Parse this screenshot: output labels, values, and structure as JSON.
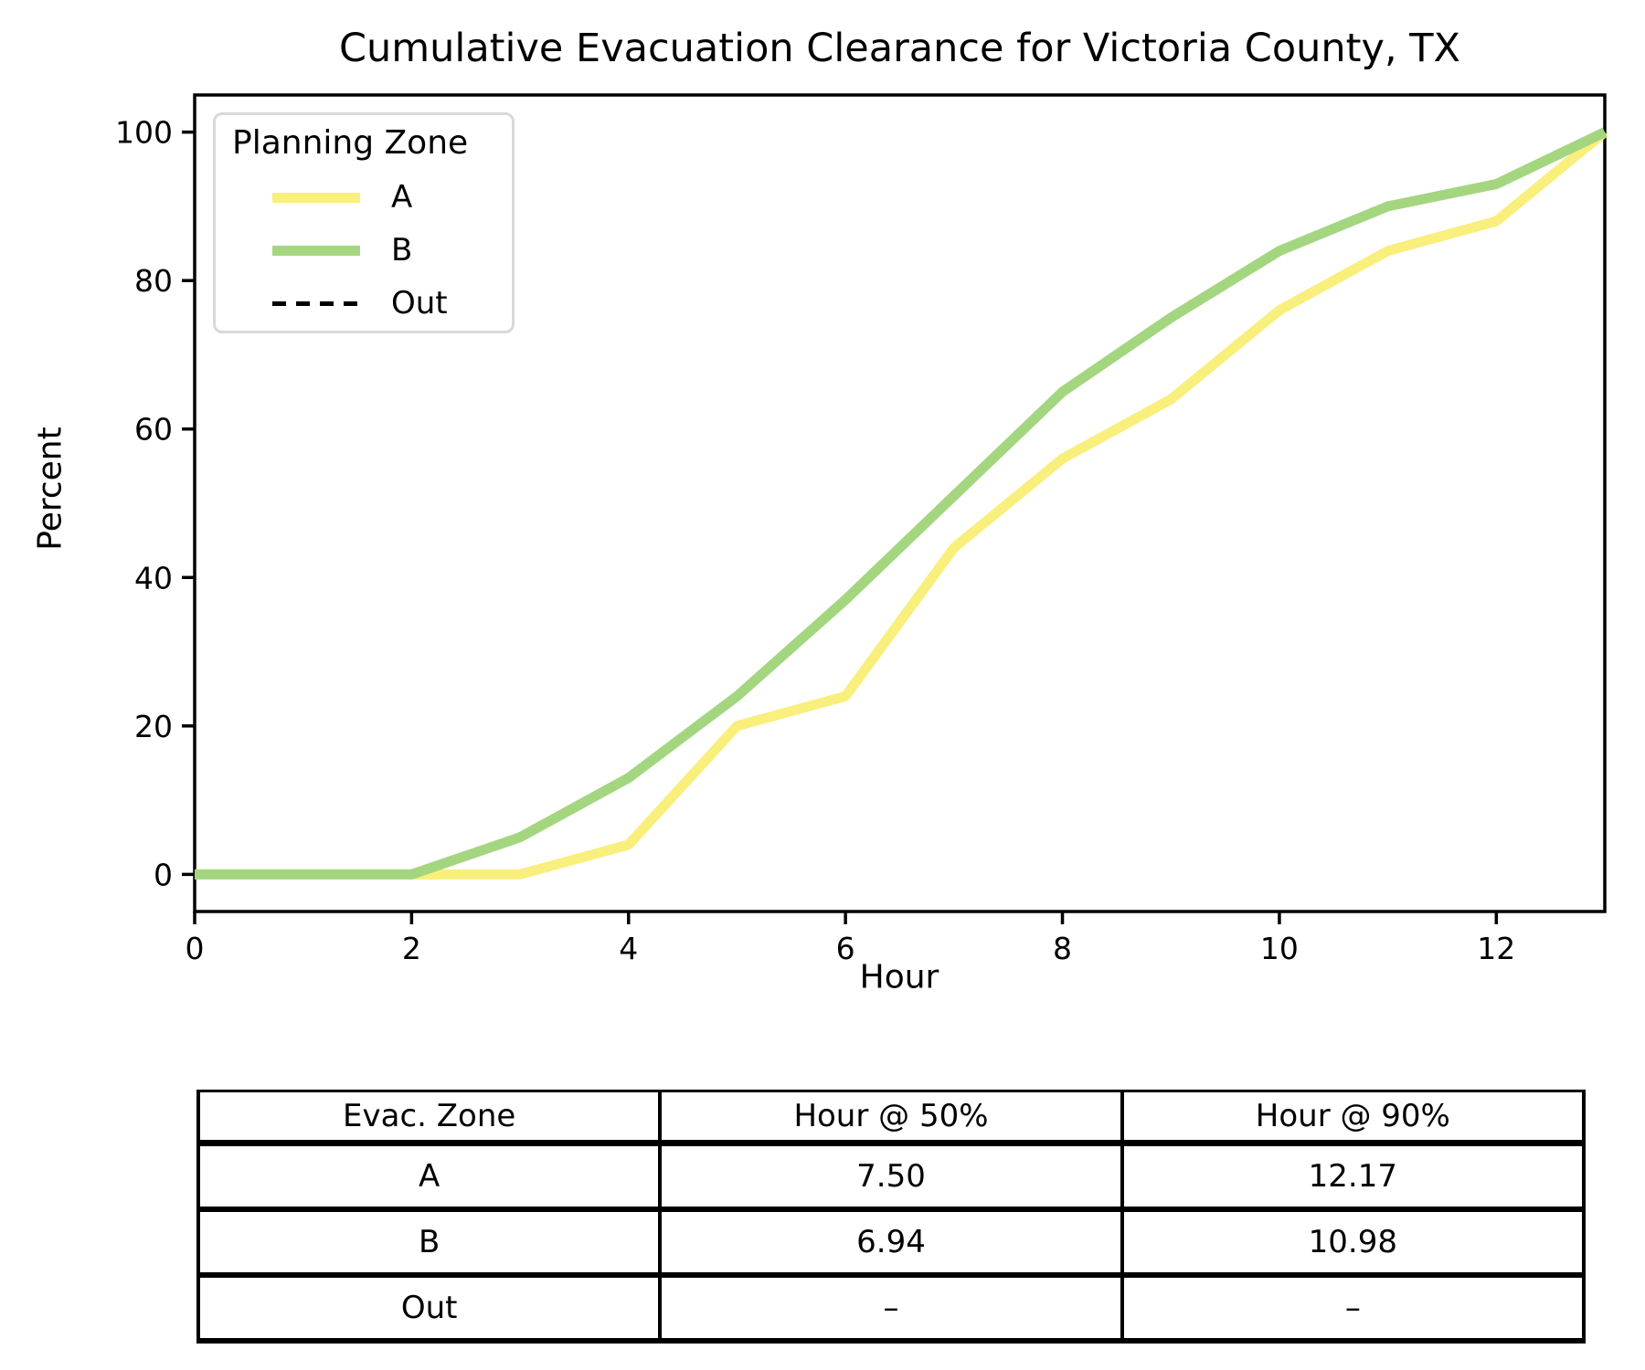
{
  "title": "Cumulative Evacuation Clearance for Victoria County, TX",
  "axes": {
    "xlabel": "Hour",
    "ylabel": "Percent",
    "xticks": [
      0,
      2,
      4,
      6,
      8,
      10,
      12
    ],
    "yticks": [
      0,
      20,
      40,
      60,
      80,
      100
    ]
  },
  "legend": {
    "title": "Planning Zone",
    "items": [
      {
        "label": "A",
        "swatch": "solid",
        "color": "#f9ef7c"
      },
      {
        "label": "B",
        "swatch": "solid",
        "color": "#a4d680"
      },
      {
        "label": "Out",
        "swatch": "dashed",
        "color": "#000000"
      }
    ]
  },
  "chart_data": {
    "type": "line",
    "title": "Cumulative Evacuation Clearance for Victoria County, TX",
    "xlabel": "Hour",
    "ylabel": "Percent",
    "xlim": [
      0,
      13
    ],
    "ylim": [
      -5,
      105
    ],
    "grid": false,
    "legend_position": "upper left",
    "x": [
      0,
      1,
      2,
      3,
      4,
      5,
      6,
      7,
      8,
      9,
      10,
      11,
      12,
      13
    ],
    "series": [
      {
        "name": "A",
        "color": "#f9ef7c",
        "values": [
          0,
          0,
          0,
          0,
          4,
          20,
          24,
          44,
          56,
          64,
          76,
          84,
          88,
          100
        ]
      },
      {
        "name": "B",
        "color": "#a4d680",
        "values": [
          0,
          0,
          0,
          5,
          13,
          24,
          37,
          51,
          65,
          75,
          84,
          90,
          93,
          100
        ]
      }
    ]
  },
  "table": {
    "headers": [
      "Evac. Zone",
      "Hour @ 50%",
      "Hour @ 90%"
    ],
    "rows": [
      [
        "A",
        "7.50",
        "12.17"
      ],
      [
        "B",
        "6.94",
        "10.98"
      ],
      [
        "Out",
        "–",
        "–"
      ]
    ]
  },
  "colors": {
    "zone_a": "#f9ef7c",
    "zone_b": "#a4d680",
    "out": "#000000",
    "spine": "#000000",
    "legend_border": "#d9d9d9",
    "background": "#ffffff"
  }
}
